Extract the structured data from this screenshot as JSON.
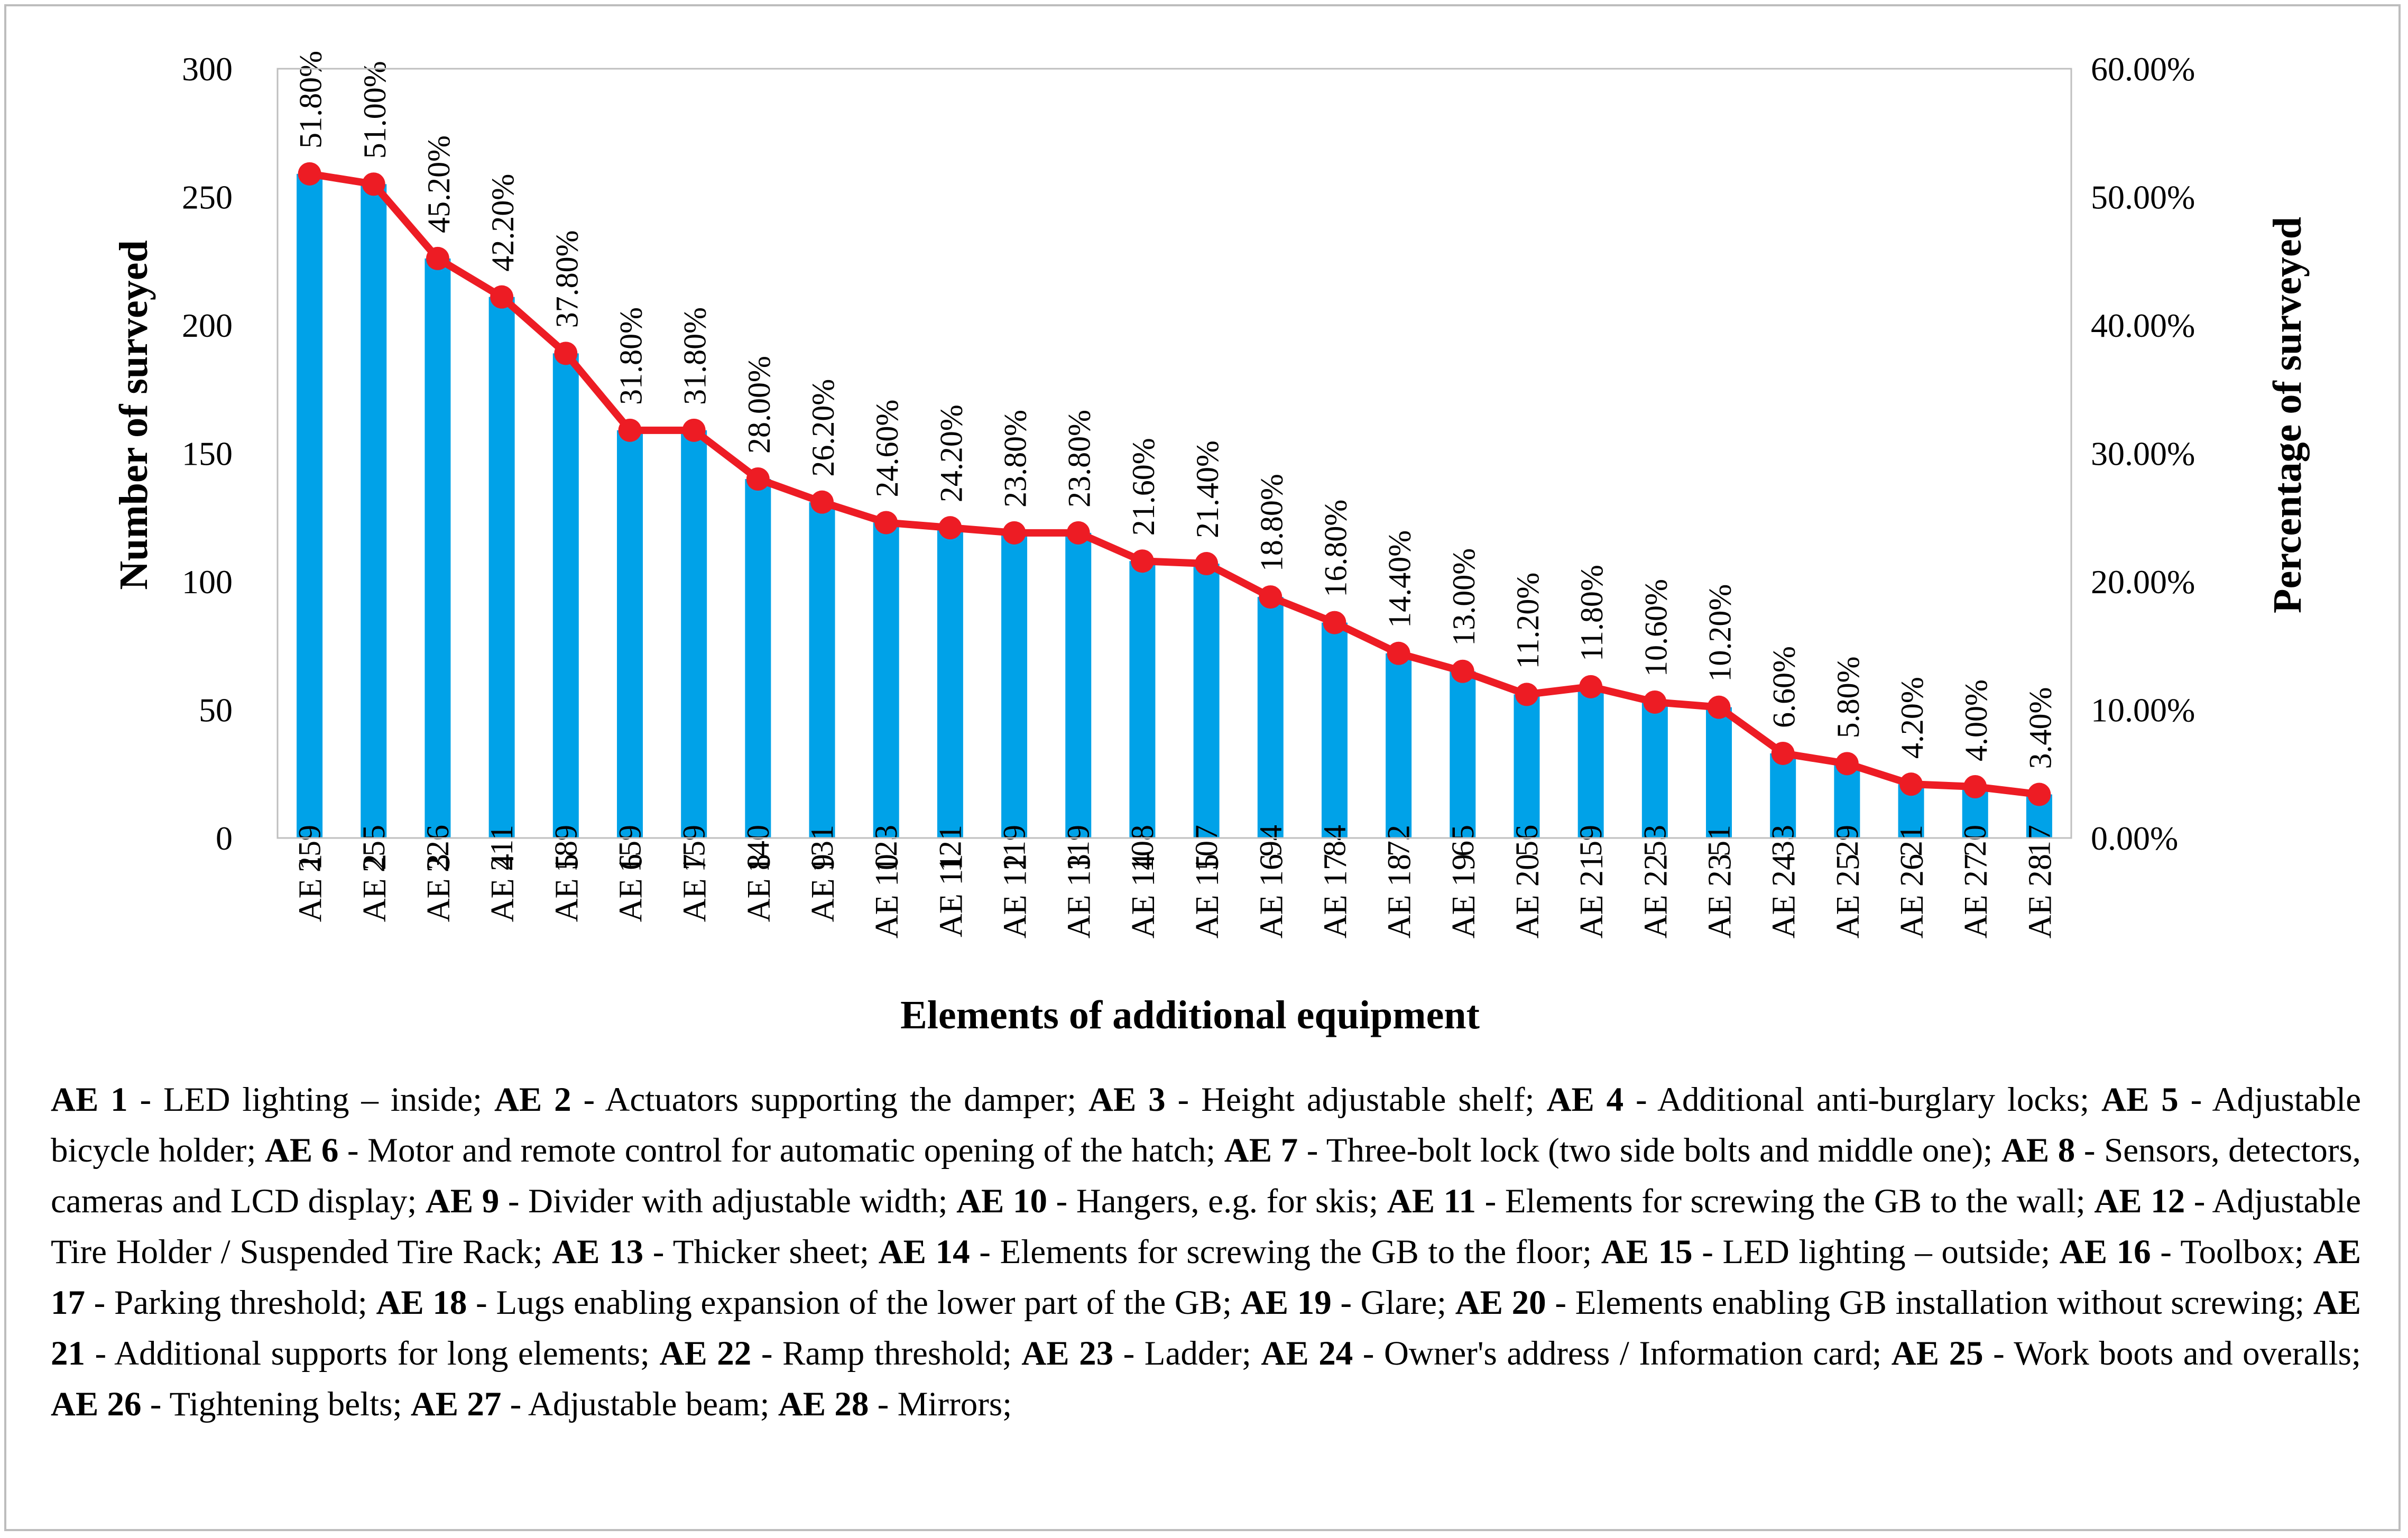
{
  "chart_data": {
    "type": "bar",
    "title": "",
    "xlabel": "Elements of additional equipment",
    "ylabel": "Number of  surveyed",
    "y2label": "Percentage of surveyed",
    "ylim": [
      0,
      300
    ],
    "yticks": [
      0,
      50,
      100,
      150,
      200,
      250,
      300
    ],
    "y2lim": [
      0,
      60
    ],
    "y2ticks": [
      "0.00%",
      "10.00%",
      "20.00%",
      "30.00%",
      "40.00%",
      "50.00%",
      "60.00%"
    ],
    "categories": [
      "AE 1",
      "AE 2",
      "AE 3",
      "AE 4",
      "AE 5",
      "AE 6",
      "AE 7",
      "AE 8",
      "AE 9",
      "AE 10",
      "AE 11",
      "AE 12",
      "AE 13",
      "AE 14",
      "AE 15",
      "AE 16",
      "AE 17",
      "AE 18",
      "AE 19",
      "AE 20",
      "AE 21",
      "AE 22",
      "AE 23",
      "AE 24",
      "AE 25",
      "AE 26",
      "AE 27",
      "AE 28"
    ],
    "series": [
      {
        "name": "Number of surveyed",
        "type": "bar",
        "color": "#00a2e8",
        "axis": "left",
        "values": [
          259,
          255,
          226,
          211,
          189,
          159,
          159,
          140,
          131,
          123,
          121,
          119,
          119,
          108,
          107,
          94,
          84,
          72,
          65,
          56,
          59,
          53,
          51,
          33,
          29,
          21,
          20,
          17
        ]
      },
      {
        "name": "Percentage of surveyed",
        "type": "line",
        "color": "#ed1c24",
        "axis": "right",
        "values": [
          51.8,
          51.0,
          45.2,
          42.2,
          37.8,
          31.8,
          31.8,
          28.0,
          26.2,
          24.6,
          24.2,
          23.8,
          23.8,
          21.6,
          21.4,
          18.8,
          16.8,
          14.4,
          13.0,
          11.2,
          11.8,
          10.6,
          10.2,
          6.6,
          5.8,
          4.2,
          4.0,
          3.4
        ],
        "labels": [
          "51.80%",
          "51.00%",
          "45.20%",
          "42.20%",
          "37.80%",
          "31.80%",
          "31.80%",
          "28.00%",
          "26.20%",
          "24.60%",
          "24.20%",
          "23.80%",
          "23.80%",
          "21.60%",
          "21.40%",
          "18.80%",
          "16.80%",
          "14.40%",
          "13.00%",
          "11.20%",
          "11.80%",
          "10.60%",
          "10.20%",
          "6.60%",
          "5.80%",
          "4.20%",
          "4.00%",
          "3.40%"
        ]
      }
    ],
    "grid": false,
    "legend": "none"
  },
  "legend_note": [
    {
      "code": "AE 1",
      "text": "LED lighting – inside"
    },
    {
      "code": "AE 2",
      "text": "Actuators supporting the damper"
    },
    {
      "code": "AE 3",
      "text": "Height adjustable shelf"
    },
    {
      "code": "AE 4",
      "text": "Additional anti-burglary locks"
    },
    {
      "code": "AE 5",
      "text": "Adjustable bicycle holder"
    },
    {
      "code": "AE 6",
      "text": "Motor and remote control for automatic opening of the hatch"
    },
    {
      "code": "AE 7",
      "text": "Three-bolt lock (two side bolts and middle one)"
    },
    {
      "code": "AE 8",
      "text": "Sensors, detectors, cameras and LCD display"
    },
    {
      "code": "AE 9",
      "text": "Divider with adjustable width"
    },
    {
      "code": "AE 10",
      "text": "Hangers, e.g. for skis"
    },
    {
      "code": "AE 11",
      "text": "Elements for screwing the GB to the wall"
    },
    {
      "code": "AE 12",
      "text": "Adjustable Tire Holder / Suspended Tire Rack"
    },
    {
      "code": "AE 13",
      "text": "Thicker sheet"
    },
    {
      "code": "AE 14",
      "text": "Elements for screwing the GB to the floor"
    },
    {
      "code": "AE 15",
      "text": "LED lighting – outside"
    },
    {
      "code": "AE 16",
      "text": "Toolbox"
    },
    {
      "code": "AE 17",
      "text": "Parking threshold"
    },
    {
      "code": "AE 18",
      "text": "Lugs enabling expansion of the lower part of the GB"
    },
    {
      "code": "AE 19",
      "text": "Glare"
    },
    {
      "code": "AE 20",
      "text": "Elements enabling GB installation without screwing"
    },
    {
      "code": "AE 21",
      "text": "Additional supports for long elements"
    },
    {
      "code": "AE 22",
      "text": "Ramp threshold"
    },
    {
      "code": "AE 23",
      "text": "Ladder"
    },
    {
      "code": "AE 24",
      "text": "Owner's address / Information card"
    },
    {
      "code": "AE 25",
      "text": "Work boots and overalls"
    },
    {
      "code": "AE 26",
      "text": "Tightening belts"
    },
    {
      "code": "AE 27",
      "text": "Adjustable beam"
    },
    {
      "code": "AE 28",
      "text": "Mirrors"
    }
  ]
}
